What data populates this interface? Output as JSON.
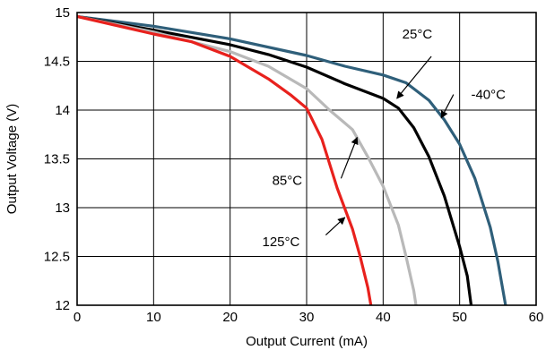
{
  "chart_data": {
    "type": "line",
    "title": "",
    "xlabel": "Output Current (mA)",
    "ylabel": "Output Voltage (V)",
    "xlim": [
      0,
      60
    ],
    "ylim": [
      12,
      15
    ],
    "x_ticks": [
      0,
      10,
      20,
      30,
      40,
      50,
      60
    ],
    "y_ticks": [
      12,
      12.5,
      13,
      13.5,
      14,
      14.5,
      15
    ],
    "y_tick_labels": [
      "12",
      "12.5",
      "13",
      "13.5",
      "14",
      "14.5",
      "15"
    ],
    "grid": true,
    "legend": "none",
    "series": [
      {
        "name": "-40°C",
        "color": "#2f5f7a",
        "points": [
          [
            0,
            14.96
          ],
          [
            10,
            14.86
          ],
          [
            20,
            14.73
          ],
          [
            30,
            14.56
          ],
          [
            35,
            14.45
          ],
          [
            40,
            14.36
          ],
          [
            43,
            14.28
          ],
          [
            46,
            14.1
          ],
          [
            48,
            13.9
          ],
          [
            50,
            13.65
          ],
          [
            52,
            13.3
          ],
          [
            54,
            12.8
          ],
          [
            55,
            12.45
          ],
          [
            56,
            12.0
          ]
        ]
      },
      {
        "name": "25°C",
        "color": "#000000",
        "points": [
          [
            0,
            14.96
          ],
          [
            10,
            14.82
          ],
          [
            20,
            14.67
          ],
          [
            25,
            14.57
          ],
          [
            30,
            14.44
          ],
          [
            35,
            14.27
          ],
          [
            38,
            14.18
          ],
          [
            40,
            14.12
          ],
          [
            42,
            14.02
          ],
          [
            44,
            13.82
          ],
          [
            46,
            13.52
          ],
          [
            48,
            13.12
          ],
          [
            50,
            12.6
          ],
          [
            51,
            12.3
          ],
          [
            51.5,
            12.0
          ]
        ]
      },
      {
        "name": "85°C",
        "color": "#b9b9b9",
        "points": [
          [
            0,
            14.96
          ],
          [
            10,
            14.8
          ],
          [
            20,
            14.6
          ],
          [
            25,
            14.45
          ],
          [
            30,
            14.22
          ],
          [
            33,
            14.0
          ],
          [
            36,
            13.8
          ],
          [
            38,
            13.52
          ],
          [
            40,
            13.22
          ],
          [
            42,
            12.82
          ],
          [
            43,
            12.5
          ],
          [
            44,
            12.15
          ],
          [
            44.3,
            12.0
          ]
        ]
      },
      {
        "name": "125°C",
        "color": "#e8211d",
        "points": [
          [
            0,
            14.96
          ],
          [
            10,
            14.78
          ],
          [
            15,
            14.7
          ],
          [
            20,
            14.55
          ],
          [
            25,
            14.32
          ],
          [
            28,
            14.15
          ],
          [
            30,
            14.02
          ],
          [
            32,
            13.7
          ],
          [
            34,
            13.2
          ],
          [
            36,
            12.78
          ],
          [
            37,
            12.5
          ],
          [
            38,
            12.18
          ],
          [
            38.4,
            12.0
          ]
        ]
      }
    ],
    "annotations": [
      {
        "text": "25°C",
        "label_at": [
          42.5,
          14.78
        ],
        "arrow_from": [
          46.3,
          14.55
        ],
        "arrow_to": [
          41.8,
          14.12
        ]
      },
      {
        "text": "-40°C",
        "label_at": [
          51.5,
          14.16
        ],
        "arrow_from": [
          49.2,
          14.16
        ],
        "arrow_to": [
          47.6,
          13.92
        ]
      },
      {
        "text": "85°C",
        "label_at": [
          25.5,
          13.28
        ],
        "arrow_from": [
          34.5,
          13.3
        ],
        "arrow_to": [
          36.6,
          13.72
        ]
      },
      {
        "text": "125°C",
        "label_at": [
          24.2,
          12.65
        ],
        "arrow_from": [
          32.5,
          12.72
        ],
        "arrow_to": [
          35.0,
          12.9
        ]
      }
    ]
  }
}
